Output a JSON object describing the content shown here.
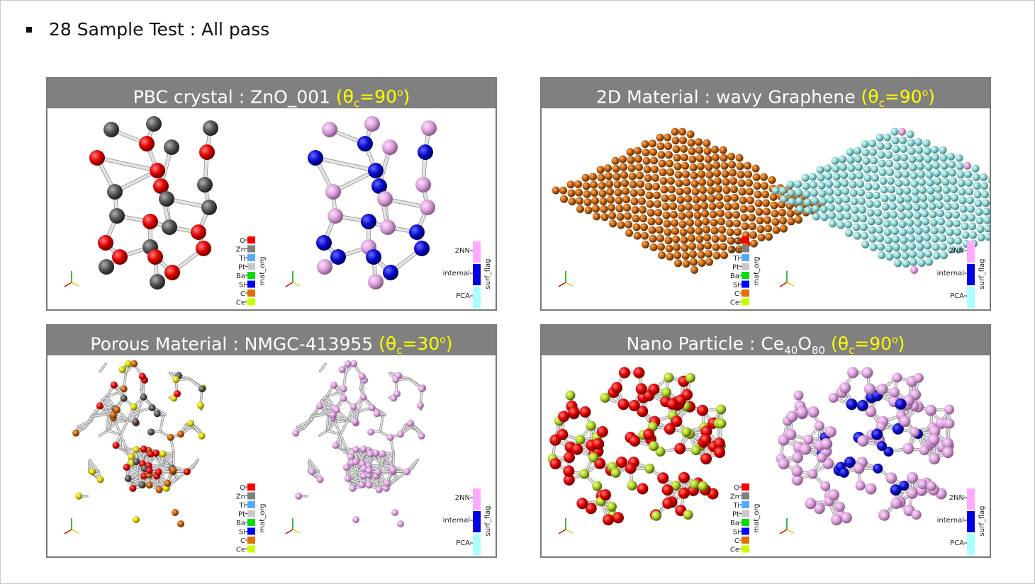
{
  "slide": {
    "bullet_text": "28 Sample Test : All pass"
  },
  "panels": [
    {
      "title": "PBC crystal : ZnO_001",
      "theta_prefix": "(θ",
      "theta_sub": "c",
      "theta_value": "=90",
      "theta_suffix": ")",
      "scheme": "zno"
    },
    {
      "title": "2D Material : wavy Graphene",
      "theta_prefix": "(θ",
      "theta_sub": "c",
      "theta_value": "=90",
      "theta_suffix": ")",
      "scheme": "graphene"
    },
    {
      "title": "Porous Material : NMGC-413955",
      "theta_prefix": "(θ",
      "theta_sub": "c",
      "theta_value": "=30",
      "theta_suffix": ")",
      "scheme": "porous"
    },
    {
      "title_main": "Nano Particle : Ce",
      "title_sub1": "40",
      "title_mid": "O",
      "title_sub2": "80",
      "theta_prefix": "(θ",
      "theta_sub": "c",
      "theta_value": "=90",
      "theta_suffix": ")",
      "scheme": "nano"
    }
  ],
  "legend_mat_org": {
    "title": "mat_org",
    "items": [
      {
        "label": "O",
        "color": "#ff0000"
      },
      {
        "label": "Zn",
        "color": "#808080"
      },
      {
        "label": "Ti",
        "color": "#55aaff"
      },
      {
        "label": "Pt",
        "color": "#c8c8c8"
      },
      {
        "label": "Ba",
        "color": "#00e000"
      },
      {
        "label": "Si",
        "color": "#0000ff"
      },
      {
        "label": "C",
        "color": "#e07000"
      },
      {
        "label": "Ce",
        "color": "#c8ff00"
      }
    ]
  },
  "legend_surf_flag": {
    "title": "surf_flag",
    "items": [
      {
        "label": "2NN",
        "color": "#ffaaff"
      },
      {
        "label": "internal",
        "color": "#0000e0"
      },
      {
        "label": "PCA",
        "color": "#aaffff"
      }
    ]
  },
  "colors": {
    "zno_o": "#e00000",
    "zno_zn": "#555555",
    "surf": "#d9a0d9",
    "internal": "#0a0ad0",
    "graphene_c": "#c06010",
    "graphene_pca": "#88d0d0",
    "ce": "#a8d020",
    "bond": "#d8d8d8"
  }
}
